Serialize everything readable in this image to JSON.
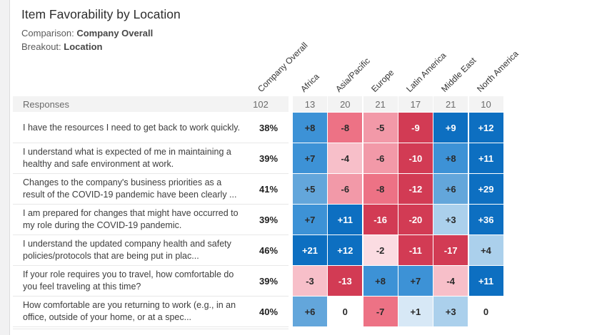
{
  "header": {
    "title": "Item Favorability by Location",
    "comparison_label": "Comparison:",
    "comparison_value": "Company Overall",
    "breakout_label": "Breakout:",
    "breakout_value": "Location"
  },
  "palette": {
    "blue5": {
      "bg": "#0d6fc1",
      "fg": "#ffffff"
    },
    "blue4": {
      "bg": "#3d92d6",
      "fg": "#2a2a2a"
    },
    "blue3": {
      "bg": "#63a6db",
      "fg": "#2a2a2a"
    },
    "blue2": {
      "bg": "#abd0ec",
      "fg": "#2a2a2a"
    },
    "blue1": {
      "bg": "#d7e8f6",
      "fg": "#2a2a2a"
    },
    "zero": {
      "bg": "#ffffff",
      "fg": "#2a2a2a"
    },
    "pink1": {
      "bg": "#fbdce2",
      "fg": "#2a2a2a"
    },
    "pink2": {
      "bg": "#f7bfc9",
      "fg": "#2a2a2a"
    },
    "pink3": {
      "bg": "#f299a8",
      "fg": "#2a2a2a"
    },
    "pink4": {
      "bg": "#ed7285",
      "fg": "#2a2a2a"
    },
    "red5": {
      "bg": "#d23b54",
      "fg": "#ffffff"
    }
  },
  "chart_data": {
    "type": "heatmap",
    "title": "Item Favorability by Location",
    "comparison": "Company Overall",
    "breakout": "Location",
    "responses_label": "Responses",
    "columns": [
      "Company Overall",
      "Africa",
      "Asia/Pacific",
      "Europe",
      "Latin America",
      "Middle East",
      "North America"
    ],
    "responses": [
      "102",
      "13",
      "20",
      "21",
      "17",
      "21",
      "10"
    ],
    "value_columns": [
      "Africa",
      "Asia/Pacific",
      "Europe",
      "Latin America",
      "Middle East",
      "North America"
    ],
    "rows": [
      {
        "question": "I have the resources I need to get back to work quickly.",
        "favorability": "38%",
        "cells": [
          {
            "v": "+8",
            "n": 8,
            "c": "blue4"
          },
          {
            "v": "-8",
            "n": -8,
            "c": "pink4"
          },
          {
            "v": "-5",
            "n": -5,
            "c": "pink3"
          },
          {
            "v": "-9",
            "n": -9,
            "c": "red5"
          },
          {
            "v": "+9",
            "n": 9,
            "c": "blue5"
          },
          {
            "v": "+12",
            "n": 12,
            "c": "blue5"
          }
        ]
      },
      {
        "question": "I understand what is expected of me in maintaining a healthy and safe environment at work.",
        "favorability": "39%",
        "cells": [
          {
            "v": "+7",
            "n": 7,
            "c": "blue4"
          },
          {
            "v": "-4",
            "n": -4,
            "c": "pink2"
          },
          {
            "v": "-6",
            "n": -6,
            "c": "pink3"
          },
          {
            "v": "-10",
            "n": -10,
            "c": "red5"
          },
          {
            "v": "+8",
            "n": 8,
            "c": "blue4"
          },
          {
            "v": "+11",
            "n": 11,
            "c": "blue5"
          }
        ]
      },
      {
        "question": "Changes to the company's business priorities as a result of the COVID-19 pandemic have been clearly ...",
        "favorability": "41%",
        "cells": [
          {
            "v": "+5",
            "n": 5,
            "c": "blue3"
          },
          {
            "v": "-6",
            "n": -6,
            "c": "pink3"
          },
          {
            "v": "-8",
            "n": -8,
            "c": "pink4"
          },
          {
            "v": "-12",
            "n": -12,
            "c": "red5"
          },
          {
            "v": "+6",
            "n": 6,
            "c": "blue3"
          },
          {
            "v": "+29",
            "n": 29,
            "c": "blue5"
          }
        ]
      },
      {
        "question": "I am prepared for changes that might have occurred to my role during the COVID-19 pandemic.",
        "favorability": "39%",
        "cells": [
          {
            "v": "+7",
            "n": 7,
            "c": "blue4"
          },
          {
            "v": "+11",
            "n": 11,
            "c": "blue5"
          },
          {
            "v": "-16",
            "n": -16,
            "c": "red5"
          },
          {
            "v": "-20",
            "n": -20,
            "c": "red5"
          },
          {
            "v": "+3",
            "n": 3,
            "c": "blue2"
          },
          {
            "v": "+36",
            "n": 36,
            "c": "blue5"
          }
        ]
      },
      {
        "question": "I understand the updated company health and safety policies/protocols that are being put in plac...",
        "favorability": "46%",
        "cells": [
          {
            "v": "+21",
            "n": 21,
            "c": "blue5"
          },
          {
            "v": "+12",
            "n": 12,
            "c": "blue5"
          },
          {
            "v": "-2",
            "n": -2,
            "c": "pink1"
          },
          {
            "v": "-11",
            "n": -11,
            "c": "red5"
          },
          {
            "v": "-17",
            "n": -17,
            "c": "red5"
          },
          {
            "v": "+4",
            "n": 4,
            "c": "blue2"
          }
        ]
      },
      {
        "question": "If your role requires you to travel, how comfortable do you feel traveling at this time?",
        "favorability": "39%",
        "cells": [
          {
            "v": "-3",
            "n": -3,
            "c": "pink2"
          },
          {
            "v": "-13",
            "n": -13,
            "c": "red5"
          },
          {
            "v": "+8",
            "n": 8,
            "c": "blue4"
          },
          {
            "v": "+7",
            "n": 7,
            "c": "blue4"
          },
          {
            "v": "-4",
            "n": -4,
            "c": "pink2"
          },
          {
            "v": "+11",
            "n": 11,
            "c": "blue5"
          }
        ]
      },
      {
        "question": "How comfortable are you returning to work (e.g., in an office, outside of your home, or at a spec...",
        "favorability": "40%",
        "cells": [
          {
            "v": "+6",
            "n": 6,
            "c": "blue3"
          },
          {
            "v": "0",
            "n": 0,
            "c": "zero"
          },
          {
            "v": "-7",
            "n": -7,
            "c": "pink4"
          },
          {
            "v": "+1",
            "n": 1,
            "c": "blue1"
          },
          {
            "v": "+3",
            "n": 3,
            "c": "blue2"
          },
          {
            "v": "0",
            "n": 0,
            "c": "zero"
          }
        ]
      }
    ]
  }
}
